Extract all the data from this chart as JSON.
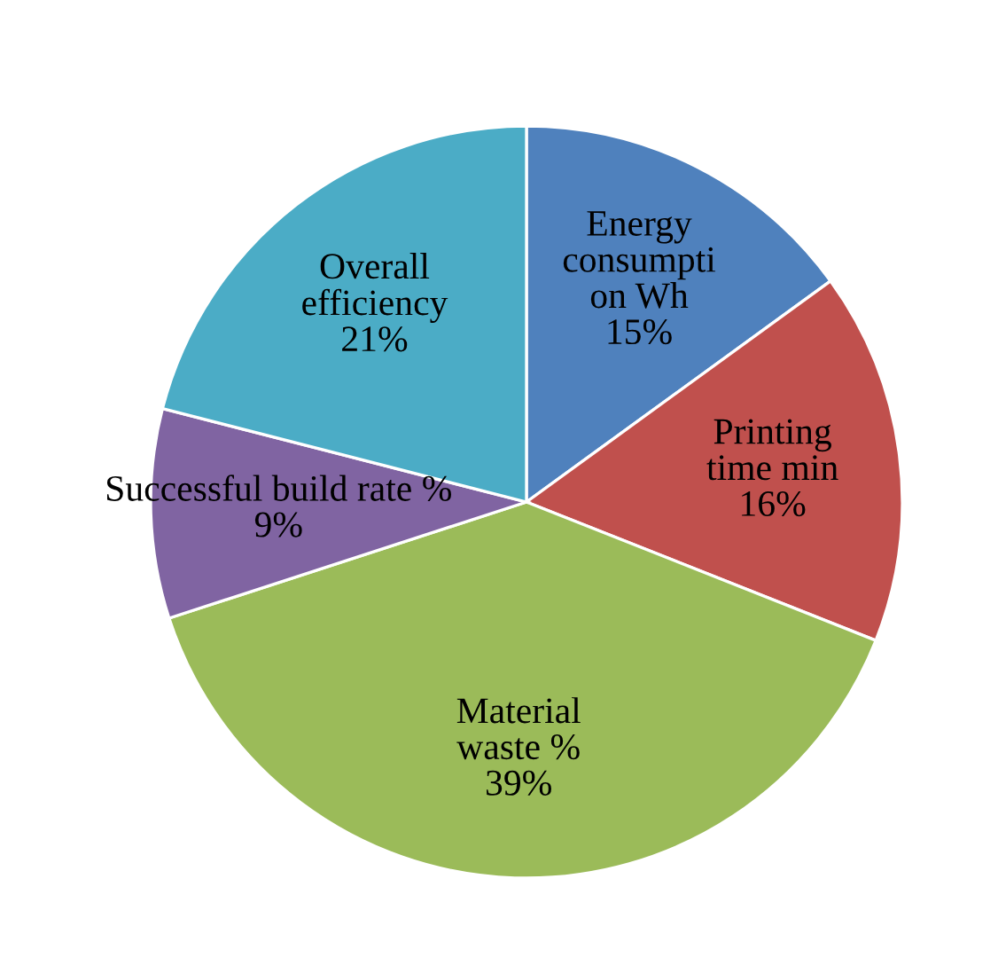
{
  "chart_data": {
    "type": "pie",
    "categories": [
      "Energy\nconsumpti\non Wh",
      "Printing\ntime min",
      "Material\nwaste %",
      "Successful build rate %",
      "Overall\nefficiency"
    ],
    "values": [
      15,
      16,
      39,
      9,
      21
    ],
    "value_labels": [
      "15%",
      "16%",
      "39%",
      "9%",
      "21%"
    ],
    "colors": [
      "#4f81bd",
      "#c0504d",
      "#9bbb59",
      "#8064a2",
      "#4bacc6"
    ],
    "legend": false
  }
}
